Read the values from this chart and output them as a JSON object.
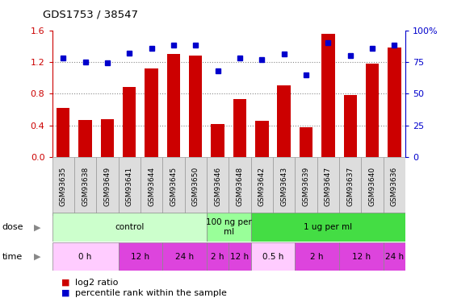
{
  "title": "GDS1753 / 38547",
  "samples": [
    "GSM93635",
    "GSM93638",
    "GSM93649",
    "GSM93641",
    "GSM93644",
    "GSM93645",
    "GSM93650",
    "GSM93646",
    "GSM93648",
    "GSM93642",
    "GSM93643",
    "GSM93639",
    "GSM93647",
    "GSM93637",
    "GSM93640",
    "GSM93636"
  ],
  "log2_ratio": [
    0.62,
    0.47,
    0.48,
    0.88,
    1.12,
    1.3,
    1.28,
    0.42,
    0.73,
    0.46,
    0.9,
    0.38,
    1.55,
    0.78,
    1.18,
    1.38
  ],
  "pct_rank": [
    78,
    75,
    74,
    82,
    86,
    88,
    88,
    68,
    78,
    77,
    81,
    65,
    90,
    80,
    86,
    88
  ],
  "ylim_left": [
    0,
    1.6
  ],
  "ylim_right": [
    0,
    100
  ],
  "yticks_left": [
    0,
    0.4,
    0.8,
    1.2,
    1.6
  ],
  "yticks_right": [
    0,
    25,
    50,
    75,
    100
  ],
  "bar_color": "#cc0000",
  "dot_color": "#0000cc",
  "dose_groups": [
    {
      "label": "control",
      "start": 0,
      "end": 7,
      "color": "#ccffcc"
    },
    {
      "label": "100 ng per\nml",
      "start": 7,
      "end": 9,
      "color": "#99ff99"
    },
    {
      "label": "1 ug per ml",
      "start": 9,
      "end": 16,
      "color": "#44dd44"
    }
  ],
  "time_groups": [
    {
      "label": "0 h",
      "start": 0,
      "end": 3,
      "color": "#ffccff"
    },
    {
      "label": "12 h",
      "start": 3,
      "end": 5,
      "color": "#dd44dd"
    },
    {
      "label": "24 h",
      "start": 5,
      "end": 7,
      "color": "#dd44dd"
    },
    {
      "label": "2 h",
      "start": 7,
      "end": 8,
      "color": "#dd44dd"
    },
    {
      "label": "12 h",
      "start": 8,
      "end": 9,
      "color": "#dd44dd"
    },
    {
      "label": "0.5 h",
      "start": 9,
      "end": 11,
      "color": "#ffccff"
    },
    {
      "label": "2 h",
      "start": 11,
      "end": 13,
      "color": "#dd44dd"
    },
    {
      "label": "12 h",
      "start": 13,
      "end": 15,
      "color": "#dd44dd"
    },
    {
      "label": "24 h",
      "start": 15,
      "end": 16,
      "color": "#dd44dd"
    }
  ],
  "legend_items": [
    {
      "color": "#cc0000",
      "label": "log2 ratio"
    },
    {
      "color": "#0000cc",
      "label": "percentile rank within the sample"
    }
  ],
  "grid_color": "#888888",
  "grid_yticks": [
    0.4,
    0.8,
    1.2
  ],
  "axis_color_left": "#cc0000",
  "axis_color_right": "#0000cc",
  "sample_box_color": "#dddddd",
  "sample_box_edge": "#999999"
}
